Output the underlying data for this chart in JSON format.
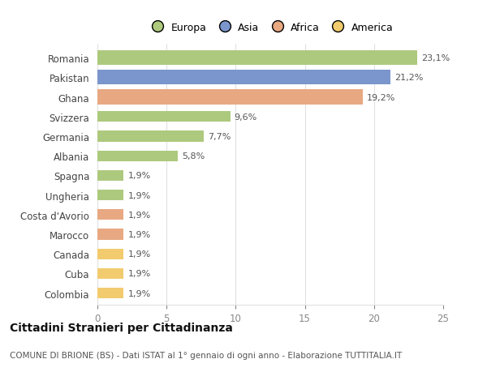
{
  "categories": [
    "Colombia",
    "Cuba",
    "Canada",
    "Marocco",
    "Costa d'Avorio",
    "Ungheria",
    "Spagna",
    "Albania",
    "Germania",
    "Svizzera",
    "Ghana",
    "Pakistan",
    "Romania"
  ],
  "values": [
    1.9,
    1.9,
    1.9,
    1.9,
    1.9,
    1.9,
    1.9,
    5.8,
    7.7,
    9.6,
    19.2,
    21.2,
    23.1
  ],
  "labels": [
    "1,9%",
    "1,9%",
    "1,9%",
    "1,9%",
    "1,9%",
    "1,9%",
    "1,9%",
    "5,8%",
    "7,7%",
    "9,6%",
    "19,2%",
    "21,2%",
    "23,1%"
  ],
  "colors": [
    "#f2cb6e",
    "#f2cb6e",
    "#f2cb6e",
    "#e8a882",
    "#e8a882",
    "#adc97e",
    "#adc97e",
    "#adc97e",
    "#adc97e",
    "#adc97e",
    "#e8a882",
    "#7a96cc",
    "#adc97e"
  ],
  "legend_labels": [
    "Europa",
    "Asia",
    "Africa",
    "America"
  ],
  "legend_colors": [
    "#adc97e",
    "#7a96cc",
    "#e8a882",
    "#f2cb6e"
  ],
  "title": "Cittadini Stranieri per Cittadinanza",
  "subtitle": "COMUNE DI BRIONE (BS) - Dati ISTAT al 1° gennaio di ogni anno - Elaborazione TUTTITALIA.IT",
  "xlim": [
    0,
    25
  ],
  "xticks": [
    0,
    5,
    10,
    15,
    20,
    25
  ],
  "bg_color": "#ffffff",
  "grid_color": "#e0e0e0",
  "bar_heights": [
    0.55,
    0.55,
    0.55,
    0.55,
    0.55,
    0.55,
    0.55,
    0.55,
    0.55,
    0.55,
    0.75,
    0.75,
    0.75
  ]
}
